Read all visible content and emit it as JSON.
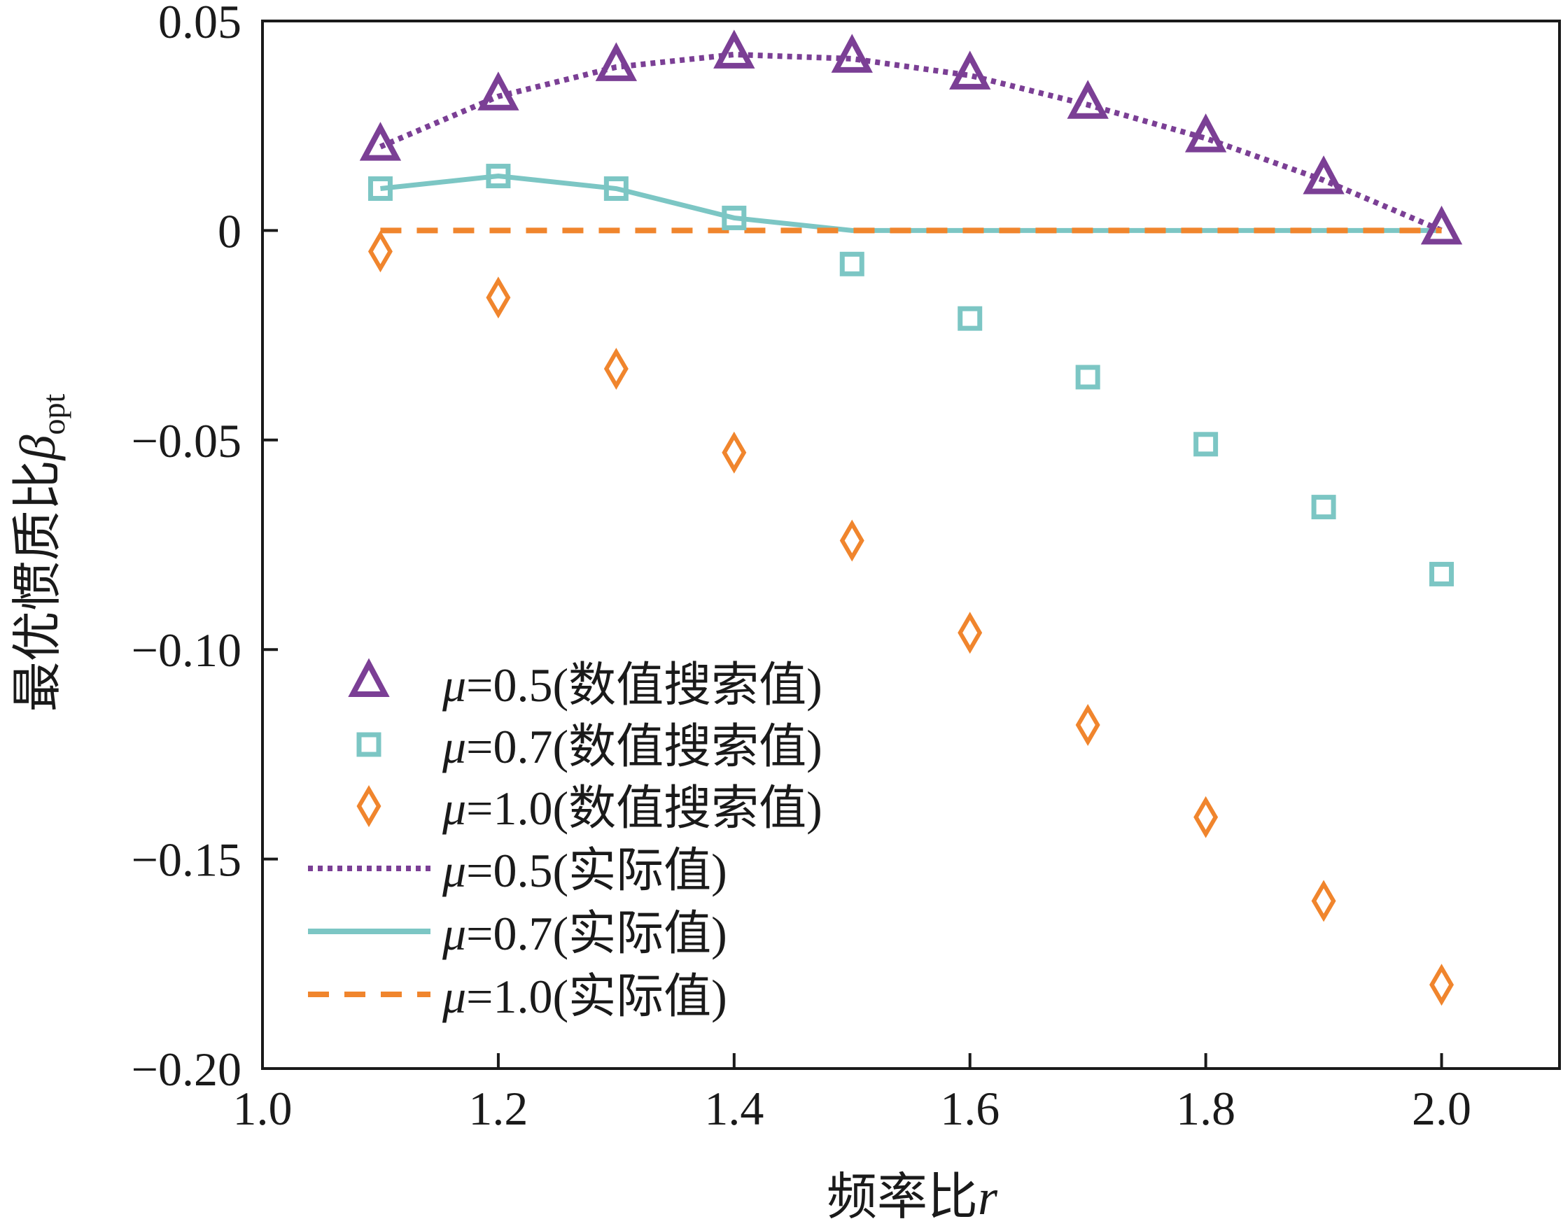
{
  "chart_data": {
    "type": "line",
    "title": "",
    "xlabel": "频率比r",
    "ylabel": "最优惯质比β_opt",
    "ylabel_main": "最优惯质比",
    "ylabel_symbol": "β",
    "ylabel_sub": "opt",
    "xlabel_main": "频率比",
    "xlabel_symbol": "r",
    "xlim": [
      1.0,
      2.1
    ],
    "ylim": [
      -0.2,
      0.05
    ],
    "xticks": [
      1.0,
      1.2,
      1.4,
      1.6,
      1.8,
      2.0
    ],
    "xtick_labels": [
      "1.0",
      "1.2",
      "1.4",
      "1.6",
      "1.8",
      "2.0"
    ],
    "yticks": [
      0.05,
      0,
      -0.05,
      -0.1,
      -0.15,
      -0.2
    ],
    "ytick_labels": [
      "0.05",
      "0",
      "−0.05",
      "−0.10",
      "−0.15",
      "−0.20"
    ],
    "grid": false,
    "legend_position": "bottom-left",
    "x": [
      1.1,
      1.2,
      1.3,
      1.4,
      1.5,
      1.6,
      1.7,
      1.8,
      1.9,
      2.0
    ],
    "series": [
      {
        "name": "μ=0.5(数值搜索值)",
        "mu": "μ",
        "rest": "=0.5(数值搜索值)",
        "kind": "marker",
        "marker": "triangle",
        "color": "#7b3f95",
        "values": [
          0.02,
          0.032,
          0.039,
          0.042,
          0.041,
          0.037,
          0.03,
          0.022,
          0.012,
          0.0
        ]
      },
      {
        "name": "μ=0.7(数值搜索值)",
        "mu": "μ",
        "rest": "=0.7(数值搜索值)",
        "kind": "marker",
        "marker": "square",
        "color": "#7cc6c4",
        "values": [
          0.01,
          0.013,
          0.01,
          0.003,
          -0.008,
          -0.021,
          -0.035,
          -0.051,
          -0.066,
          -0.082
        ]
      },
      {
        "name": "μ=1.0(数值搜索值)",
        "mu": "μ",
        "rest": "=1.0(数值搜索值)",
        "kind": "marker",
        "marker": "diamond",
        "color": "#f0852d",
        "values": [
          -0.005,
          -0.016,
          -0.033,
          -0.053,
          -0.074,
          -0.096,
          -0.118,
          -0.14,
          -0.16,
          -0.18
        ]
      },
      {
        "name": "μ=0.5(实际值)",
        "mu": "μ",
        "rest": "=0.5(实际值)",
        "kind": "line",
        "dash": "dotted",
        "color": "#7b3f95",
        "values": [
          0.02,
          0.032,
          0.039,
          0.042,
          0.041,
          0.037,
          0.03,
          0.022,
          0.012,
          0.0
        ]
      },
      {
        "name": "μ=0.7(实际值)",
        "mu": "μ",
        "rest": "=0.7(实际值)",
        "kind": "line",
        "dash": "solid",
        "color": "#7cc6c4",
        "values": [
          0.01,
          0.013,
          0.01,
          0.003,
          0.0,
          0.0,
          0.0,
          0.0,
          0.0,
          0.0
        ]
      },
      {
        "name": "μ=1.0(实际值)",
        "mu": "μ",
        "rest": "=1.0(实际值)",
        "kind": "line",
        "dash": "dashed",
        "color": "#f0852d",
        "values": [
          0.0,
          0.0,
          0.0,
          0.0,
          0.0,
          0.0,
          0.0,
          0.0,
          0.0,
          0.0
        ]
      }
    ]
  }
}
